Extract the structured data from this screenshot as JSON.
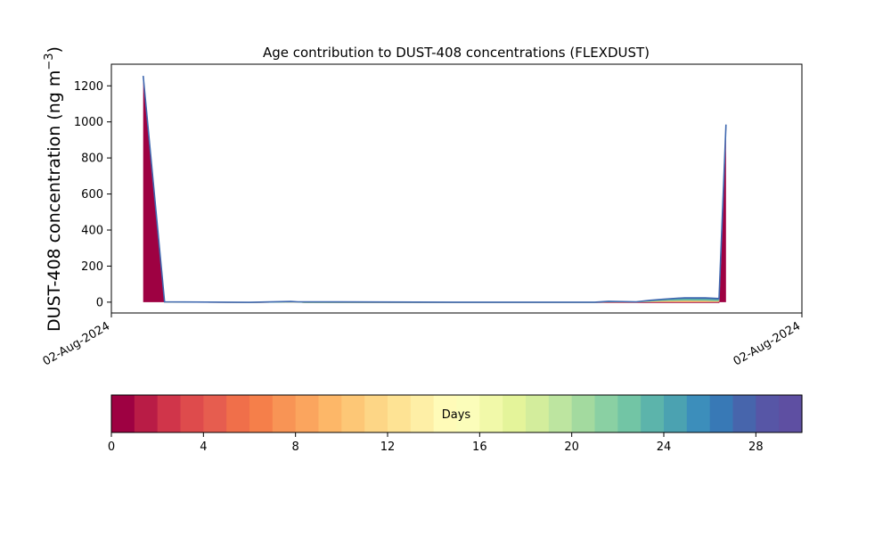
{
  "chart_data": {
    "type": "area",
    "title": "Age contribution to DUST-408 concentrations (FLEXDUST)",
    "ylabel_main": "DUST-408 concentration (ng m",
    "ylabel_sup": "−3",
    "ylabel_close": ")",
    "xlabel": "",
    "xlim": [
      0,
      1
    ],
    "ylim": [
      -60,
      1320
    ],
    "x_tick_labels": [
      "02-Aug-2024",
      "02-Aug-2024"
    ],
    "y_ticks": [
      0,
      200,
      400,
      600,
      800,
      1000,
      1200
    ],
    "grid": false,
    "x": [
      0.046,
      0.077,
      0.2,
      0.26,
      0.27,
      0.28,
      0.5,
      0.7,
      0.72,
      0.76,
      0.78,
      0.8,
      0.83,
      0.85,
      0.86,
      0.88,
      0.89
    ],
    "series": [
      {
        "values": [
          1250,
          0,
          -2,
          0,
          0,
          -2,
          -2,
          -2,
          -2,
          -2,
          -2,
          -2,
          -2,
          -2,
          -2,
          -2,
          975
        ],
        "color": "#9e0142"
      },
      {
        "values": [
          0,
          0,
          0,
          0,
          0,
          0,
          0,
          0,
          3,
          2,
          4,
          7,
          9,
          8,
          8,
          6,
          0
        ],
        "color": "#fdbf6f"
      },
      {
        "values": [
          0,
          0,
          0,
          0,
          0,
          0,
          0,
          0,
          1,
          1,
          3,
          6,
          9,
          9,
          9,
          8,
          0
        ],
        "color": "#66c2a5"
      },
      {
        "values": [
          5,
          2,
          1,
          4,
          2,
          4,
          2,
          2,
          3,
          1,
          5,
          5,
          8,
          9,
          9,
          8,
          10
        ],
        "color": "#3f68b0"
      }
    ],
    "colorbar": {
      "label": "Days",
      "ticks": [
        0,
        4,
        8,
        12,
        16,
        20,
        24,
        28
      ],
      "range": [
        0,
        30
      ],
      "colors": [
        "#9e0142",
        "#b91c46",
        "#d0354a",
        "#de4b4c",
        "#e65d4f",
        "#f06f4a",
        "#f57f4a",
        "#f89455",
        "#fba55e",
        "#fdb768",
        "#fdc776",
        "#fdd686",
        "#fee394",
        "#feefa6",
        "#fffbb8",
        "#fbfdba",
        "#f1f9a9",
        "#e4f49a",
        "#d3ed9c",
        "#bde5a0",
        "#a3da9f",
        "#8ad0a3",
        "#72c5a5",
        "#5cb4ab",
        "#4ba2b1",
        "#3c8ebb",
        "#3879b6",
        "#4765ac",
        "#5756a6",
        "#5e4fa2"
      ]
    }
  }
}
